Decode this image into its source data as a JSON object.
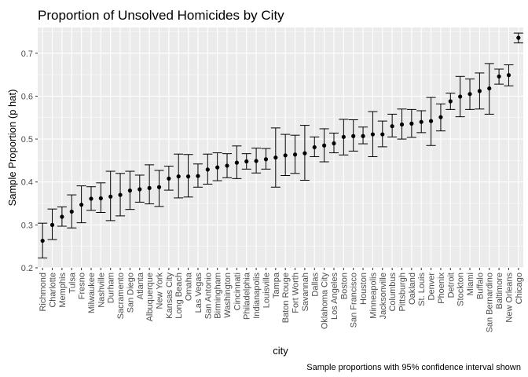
{
  "chart_data": {
    "type": "scatter",
    "title": "Proportion of Unsolved Homicides by City",
    "xlabel": "city",
    "ylabel": "Sample Proportion (p hat)",
    "caption": "Sample proportions with 95% confidence interval shown",
    "ylim": [
      0.2,
      0.76
    ],
    "yticks": [
      "0.2",
      "0.3",
      "0.4",
      "0.5",
      "0.6",
      "0.7"
    ],
    "grid": true,
    "legend": "none",
    "colors": {
      "panel": "#ebebeb",
      "grid_major": "#ffffff",
      "point": "#000000"
    },
    "categories": [
      "Richmond",
      "Charlotte",
      "Memphis",
      "Tulsa",
      "Fresno",
      "Milwaukee",
      "Nashville",
      "Durham",
      "Sacramento",
      "San Diego",
      "Atlanta",
      "Albuquerque",
      "New York",
      "Kansas City",
      "Long Beach",
      "Omaha",
      "Las Vegas",
      "San Antonio",
      "Birmingham",
      "Washington",
      "Cincinnati",
      "Philadelphia",
      "Indianapolis",
      "Louisville",
      "Tampa",
      "Baton Rouge",
      "Fort Worth",
      "Savannah",
      "Dallas",
      "Oklahoma City",
      "Los Angeles",
      "Boston",
      "San Francisco",
      "Houston",
      "Minneapolis",
      "Jacksonville",
      "Columbus",
      "Pittsburgh",
      "Oakland",
      "St. Louis",
      "Denver",
      "Phoenix",
      "Detroit",
      "Stockton",
      "Miami",
      "Buffalo",
      "San Bernardino",
      "Baltimore",
      "New Orleans",
      "Chicago"
    ],
    "values": [
      0.263,
      0.3,
      0.319,
      0.331,
      0.347,
      0.361,
      0.362,
      0.366,
      0.37,
      0.38,
      0.383,
      0.386,
      0.388,
      0.408,
      0.413,
      0.413,
      0.414,
      0.429,
      0.434,
      0.438,
      0.445,
      0.448,
      0.449,
      0.453,
      0.457,
      0.462,
      0.464,
      0.467,
      0.481,
      0.485,
      0.49,
      0.505,
      0.507,
      0.507,
      0.511,
      0.511,
      0.53,
      0.534,
      0.536,
      0.54,
      0.542,
      0.551,
      0.588,
      0.599,
      0.605,
      0.612,
      0.618,
      0.646,
      0.649,
      0.736
    ],
    "ci_low": [
      0.223,
      0.266,
      0.297,
      0.293,
      0.305,
      0.334,
      0.329,
      0.31,
      0.321,
      0.336,
      0.353,
      0.349,
      0.343,
      0.381,
      0.363,
      0.365,
      0.388,
      0.395,
      0.403,
      0.41,
      0.408,
      0.43,
      0.421,
      0.43,
      0.388,
      0.415,
      0.42,
      0.404,
      0.459,
      0.447,
      0.468,
      0.463,
      0.472,
      0.489,
      0.459,
      0.482,
      0.505,
      0.5,
      0.504,
      0.515,
      0.485,
      0.519,
      0.569,
      0.552,
      0.569,
      0.57,
      0.558,
      0.628,
      0.624,
      0.724
    ],
    "ci_high": [
      0.304,
      0.337,
      0.342,
      0.37,
      0.391,
      0.389,
      0.398,
      0.425,
      0.42,
      0.425,
      0.416,
      0.44,
      0.427,
      0.437,
      0.465,
      0.464,
      0.442,
      0.465,
      0.468,
      0.466,
      0.484,
      0.466,
      0.479,
      0.478,
      0.526,
      0.511,
      0.509,
      0.532,
      0.505,
      0.524,
      0.514,
      0.546,
      0.545,
      0.528,
      0.564,
      0.542,
      0.558,
      0.57,
      0.569,
      0.566,
      0.597,
      0.582,
      0.607,
      0.646,
      0.64,
      0.654,
      0.676,
      0.663,
      0.673,
      0.747
    ]
  }
}
